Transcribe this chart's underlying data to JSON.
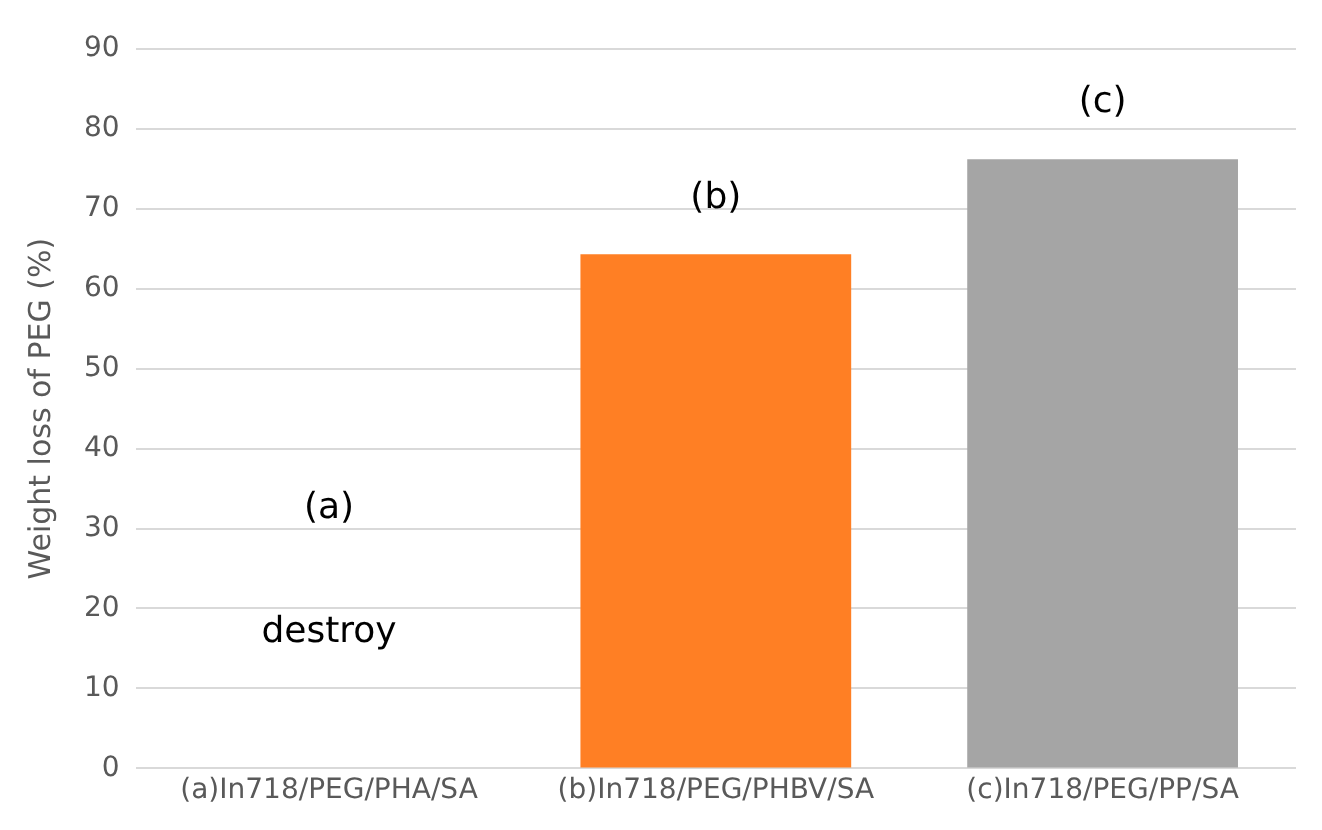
{
  "chart_data": {
    "type": "bar",
    "ylabel": "Weight loss of PEG (%)",
    "categories": [
      "(a)In718/PEG/PHA/SA",
      "(b)In718/PEG/PHBV/SA",
      "(c)In718/PEG/PP/SA"
    ],
    "values": [
      null,
      64.3,
      76.2
    ],
    "colors": [
      "#4472c4",
      "#ff7f24",
      "#a5a5a5"
    ],
    "ylim": [
      0,
      90
    ],
    "yticks": [
      0,
      10,
      20,
      30,
      40,
      50,
      60,
      70,
      80,
      90
    ],
    "grid": "y",
    "annotations": [
      "(a)",
      "destroy",
      "(b)",
      "(c)"
    ]
  }
}
